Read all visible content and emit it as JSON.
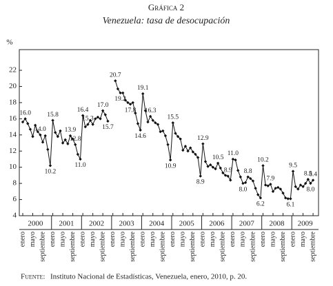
{
  "chart_data": {
    "type": "line",
    "title": "Gráfica 2",
    "subtitle": "Venezuela: tasa de desocupación",
    "y_label": "%",
    "source_label": "Fuente:",
    "source_text": "Instituto Nacional de Estadísticas, Venezuela, enero, 2010, p. 20.",
    "years": [
      "2000",
      "2001",
      "2002",
      "2003",
      "2004",
      "2005",
      "2006",
      "2007",
      "2008",
      "2009"
    ],
    "categories": [
      "enero",
      null,
      null,
      null,
      "mayo",
      null,
      null,
      null,
      "septiembre",
      null,
      null,
      null,
      "enero",
      null,
      null,
      null,
      "mayo",
      null,
      null,
      null,
      "septiembre",
      null,
      null,
      null,
      "enero",
      null,
      null,
      null,
      "mayo",
      null,
      null,
      null,
      "septiembre",
      null,
      null,
      null,
      "enero",
      null,
      null,
      null,
      "mayo",
      null,
      null,
      null,
      "septiembre",
      null,
      null,
      null,
      "enero",
      null,
      null,
      null,
      "mayo",
      null,
      null,
      null,
      "septiembre",
      null,
      null,
      null,
      "enero",
      null,
      null,
      null,
      "mayo",
      null,
      null,
      null,
      "septiembre",
      null,
      null,
      null,
      "enero",
      null,
      null,
      null,
      "mayo",
      null,
      null,
      null,
      "septiembre",
      null,
      null,
      null,
      "enero",
      null,
      null,
      null,
      "mayo",
      null,
      null,
      null,
      "septiembre",
      null,
      null,
      null,
      "enero",
      null,
      null,
      null,
      "mayo",
      null,
      null,
      null,
      "septiembre",
      null,
      null,
      null,
      "enero",
      null,
      null,
      null,
      "mayo",
      null,
      null,
      null,
      "septiembre"
    ],
    "series": [
      {
        "name": "Tasa de desocupación",
        "color": "#111111",
        "values": [
          15.6,
          16.0,
          15.4,
          14.7,
          13.8,
          15.2,
          14.4,
          14.0,
          13.1,
          13.9,
          12.2,
          10.2,
          15.8,
          14.3,
          13.8,
          14.5,
          13.0,
          13.4,
          12.9,
          13.9,
          13.5,
          12.8,
          11.6,
          11.0,
          16.4,
          15.0,
          15.3,
          15.8,
          15.3,
          16.0,
          16.2,
          16.0,
          17.0,
          16.5,
          15.7,
          null,
          null,
          20.7,
          19.7,
          19.2,
          19.2,
          18.3,
          18.0,
          17.8,
          18.0,
          16.7,
          15.4,
          14.6,
          19.1,
          17.0,
          15.6,
          16.3,
          15.8,
          15.5,
          15.3,
          14.4,
          14.5,
          13.9,
          12.8,
          10.9,
          15.5,
          14.2,
          13.8,
          13.5,
          12.1,
          12.6,
          12.0,
          12.4,
          11.9,
          11.6,
          11.2,
          8.9,
          12.9,
          10.7,
          10.1,
          10.3,
          10.0,
          9.8,
          10.5,
          9.9,
          9.3,
          9.0,
          8.9,
          8.4,
          11.0,
          10.9,
          9.6,
          8.8,
          8.0,
          8.1,
          8.8,
          8.6,
          8.3,
          7.4,
          6.6,
          6.2,
          10.2,
          7.8,
          7.7,
          7.9,
          7.0,
          7.4,
          7.5,
          7.3,
          6.8,
          6.2,
          6.1,
          6.1,
          9.5,
          7.6,
          7.3,
          7.8,
          7.6,
          8.0,
          8.5,
          8.0,
          8.4
        ],
        "value_labels": [
          null,
          "16.0",
          null,
          null,
          null,
          null,
          null,
          "14.0",
          null,
          null,
          null,
          "10.2",
          "15.8",
          null,
          null,
          null,
          null,
          null,
          null,
          "13.9",
          null,
          "12.8",
          null,
          "11.0",
          "16.4",
          null,
          "15.3",
          null,
          null,
          null,
          null,
          null,
          "17.0",
          null,
          "15.7",
          null,
          null,
          "20.7",
          null,
          "19.2",
          null,
          null,
          null,
          "17.8",
          null,
          null,
          null,
          "14.6",
          "19.1",
          null,
          null,
          "16.3",
          null,
          null,
          null,
          null,
          null,
          null,
          null,
          "10.9",
          "15.5",
          null,
          null,
          null,
          null,
          null,
          null,
          null,
          null,
          null,
          null,
          "8.9",
          "12.9",
          null,
          null,
          null,
          null,
          null,
          "10.5",
          null,
          null,
          null,
          "8.9",
          null,
          "11.0",
          null,
          null,
          null,
          "8.0",
          null,
          "8.8",
          null,
          null,
          null,
          null,
          "6.2",
          "10.2",
          null,
          null,
          "7.9",
          null,
          null,
          null,
          null,
          null,
          null,
          null,
          "6.1",
          "9.5",
          null,
          null,
          null,
          null,
          null,
          "8.5",
          "8.0",
          "8.4"
        ]
      }
    ],
    "ylim": [
      4,
      22
    ],
    "yticks": [
      4,
      6,
      8,
      10,
      12,
      14,
      16,
      18,
      20,
      22
    ],
    "grid": false,
    "marker": "diamond"
  }
}
